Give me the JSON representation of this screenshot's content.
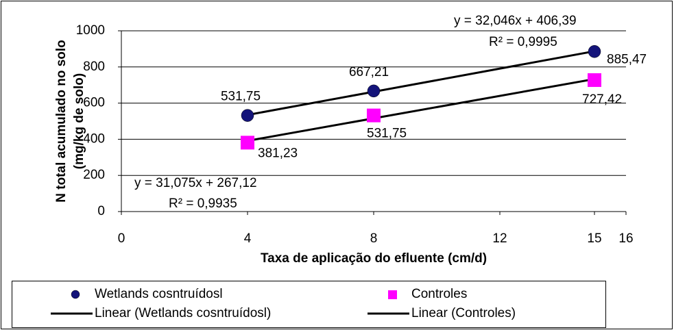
{
  "chart_data": {
    "type": "scatter",
    "xlabel": "Taxa de aplicação do efluente (cm/d)",
    "ylabel": [
      "N total acumulado no solo",
      "(mg/kg de solo)"
    ],
    "xlim": [
      0,
      16
    ],
    "xticks": [
      0,
      4,
      8,
      12,
      15,
      16
    ],
    "ylim": [
      0,
      1000
    ],
    "yticks": [
      0,
      200,
      400,
      600,
      800,
      1000
    ],
    "grid": true,
    "series": [
      {
        "name": "Wetlands cosntruídosl",
        "color": "#14147a",
        "marker": "circle",
        "x": [
          4,
          8,
          15
        ],
        "values": [
          531.75,
          667.21,
          885.47
        ],
        "value_labels": [
          "531,75",
          "667,21",
          "885,47"
        ],
        "trendline": {
          "name": "Linear (Wetlands cosntruídosl)",
          "slope": 32.046,
          "intercept": 406.39,
          "equation": "y = 32,046x + 406,39",
          "r2": "R² = 0,9995",
          "color": "#000000"
        }
      },
      {
        "name": "Controles",
        "color": "#ff00ff",
        "marker": "square",
        "x": [
          4,
          8,
          15
        ],
        "values": [
          381.23,
          531.75,
          727.42
        ],
        "value_labels": [
          "381,23",
          "531,75",
          "727,42"
        ],
        "trendline": {
          "name": "Linear (Controles)",
          "slope": 31.075,
          "intercept": 267.12,
          "equation": "y = 31,075x + 267,12",
          "r2": "R² = 0,9935",
          "color": "#000000"
        }
      }
    ]
  }
}
